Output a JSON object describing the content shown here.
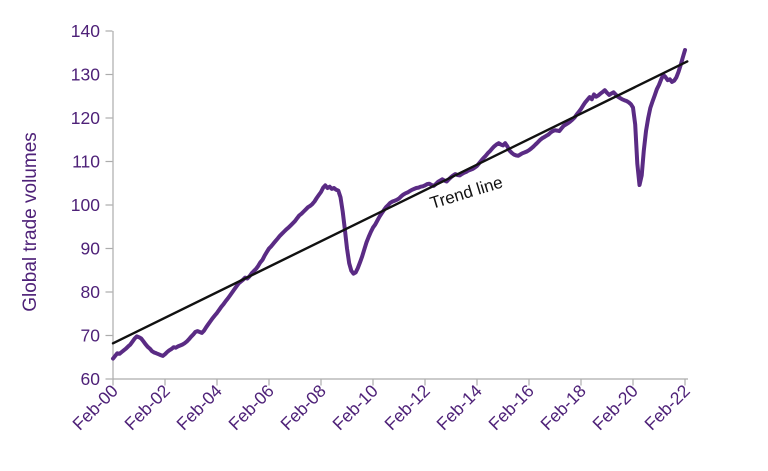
{
  "chart_data": {
    "type": "line",
    "title": "",
    "xlabel": "",
    "ylabel": "Global trade volumes",
    "ylim": [
      60,
      140
    ],
    "ytick_step": 10,
    "yticks": [
      60,
      70,
      80,
      90,
      100,
      110,
      120,
      130,
      140
    ],
    "xtick_labels": [
      "Feb-00",
      "Feb-02",
      "Feb-04",
      "Feb-06",
      "Feb-08",
      "Feb-10",
      "Feb-12",
      "Feb-14",
      "Feb-16",
      "Feb-18",
      "Feb-20",
      "Feb-22"
    ],
    "grid": false,
    "legend": "none",
    "series": [
      {
        "name": "Global trade volumes",
        "color": "#5A2B84",
        "frequency": "monthly",
        "start_label": "Feb-00",
        "end_label": "Feb-22",
        "values": [
          64.7,
          65.3,
          65.9,
          65.8,
          66.2,
          66.6,
          67.0,
          67.5,
          67.9,
          68.6,
          69.3,
          69.8,
          69.6,
          69.3,
          68.7,
          68.0,
          67.4,
          67.0,
          66.4,
          66.1,
          65.9,
          65.7,
          65.5,
          65.3,
          65.7,
          66.2,
          66.6,
          66.9,
          67.3,
          67.2,
          67.5,
          67.7,
          67.9,
          68.2,
          68.6,
          69.1,
          69.7,
          70.2,
          70.8,
          71.0,
          70.8,
          70.6,
          71.1,
          71.9,
          72.6,
          73.3,
          74.0,
          74.6,
          75.2,
          75.9,
          76.6,
          77.2,
          77.9,
          78.5,
          79.2,
          79.9,
          80.6,
          81.3,
          82.0,
          82.4,
          82.8,
          83.3,
          83.1,
          83.6,
          84.3,
          84.8,
          85.3,
          86.0,
          86.8,
          87.4,
          88.4,
          89.2,
          90.0,
          90.5,
          91.1,
          91.7,
          92.3,
          92.9,
          93.4,
          93.9,
          94.4,
          94.8,
          95.3,
          95.8,
          96.3,
          97.0,
          97.6,
          98.0,
          98.5,
          99.0,
          99.5,
          99.8,
          100.2,
          100.8,
          101.6,
          102.3,
          103.0,
          104.0,
          104.5,
          103.9,
          104.2,
          103.7,
          103.9,
          103.5,
          103.3,
          101.8,
          98.5,
          94.5,
          90.0,
          86.6,
          84.9,
          84.2,
          84.5,
          85.5,
          86.8,
          88.2,
          89.8,
          91.4,
          92.7,
          93.8,
          94.8,
          95.5,
          96.4,
          97.3,
          98.1,
          98.8,
          99.5,
          100.0,
          100.5,
          100.8,
          101.0,
          101.2,
          101.5,
          102.0,
          102.4,
          102.7,
          102.9,
          103.2,
          103.5,
          103.7,
          103.9,
          104.0,
          104.2,
          104.3,
          104.5,
          104.8,
          104.9,
          104.6,
          104.4,
          104.8,
          105.3,
          105.6,
          105.9,
          105.6,
          105.4,
          105.9,
          106.4,
          106.8,
          107.1,
          106.9,
          106.8,
          107.1,
          107.4,
          107.6,
          107.9,
          108.1,
          108.3,
          108.6,
          109.0,
          109.6,
          110.2,
          110.8,
          111.3,
          111.9,
          112.4,
          113.0,
          113.5,
          113.9,
          114.2,
          113.9,
          113.7,
          114.2,
          113.5,
          112.5,
          112.0,
          111.6,
          111.4,
          111.3,
          111.6,
          111.9,
          112.1,
          112.3,
          112.6,
          113.0,
          113.4,
          113.9,
          114.4,
          114.9,
          115.3,
          115.6,
          115.9,
          116.2,
          116.7,
          117.0,
          117.2,
          117.1,
          117.0,
          117.6,
          118.2,
          118.5,
          118.8,
          119.2,
          119.6,
          120.1,
          120.8,
          121.4,
          122.1,
          122.9,
          123.6,
          124.2,
          124.8,
          124.3,
          125.4,
          124.9,
          125.2,
          125.6,
          126.0,
          126.4,
          125.8,
          125.3,
          125.6,
          125.9,
          125.4,
          124.9,
          124.6,
          124.3,
          124.1,
          123.9,
          123.6,
          123.2,
          122.4,
          118.5,
          109.5,
          104.6,
          106.8,
          112.5,
          117.0,
          120.0,
          122.3,
          123.8,
          125.2,
          126.6,
          127.6,
          128.9,
          129.9,
          129.4,
          128.7,
          128.9,
          128.3,
          128.6,
          129.3,
          130.6,
          132.2,
          133.9,
          135.6
        ]
      }
    ],
    "trend": {
      "label": "Trend line",
      "color": "#111111",
      "x1_year": 2000.083,
      "y1": 68.2,
      "x2_year": 2022.17,
      "y2": 133.0
    }
  },
  "colors": {
    "axis_text": "#4E2178",
    "series_line": "#5A2B84",
    "trend_line": "#111111",
    "axis_line": "#ACACAC",
    "background": "#FFFFFF"
  }
}
